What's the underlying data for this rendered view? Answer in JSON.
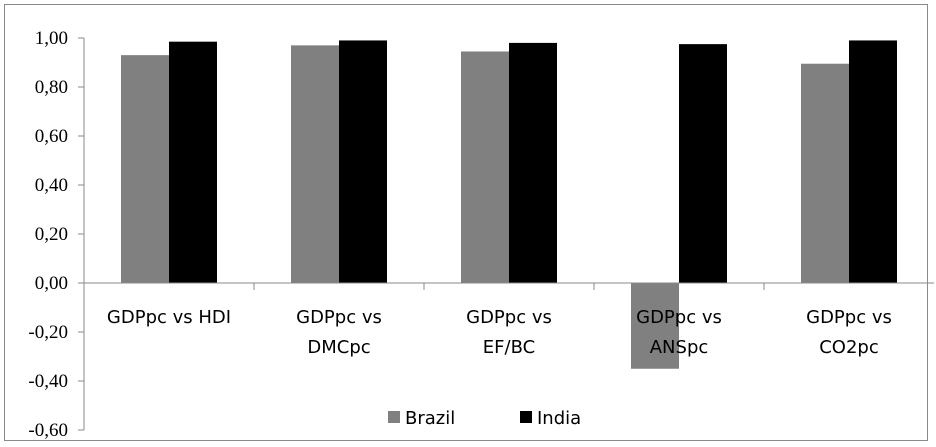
{
  "chart_data": {
    "type": "bar",
    "title": "",
    "xlabel": "",
    "ylabel": "",
    "categories": [
      [
        "GDPpc vs HDI"
      ],
      [
        "GDPpc vs",
        "DMCpc"
      ],
      [
        "GDPpc vs",
        "EF/BC"
      ],
      [
        "GDPpc vs",
        "ANSpc"
      ],
      [
        "GDPpc vs",
        "CO2pc"
      ]
    ],
    "series": [
      {
        "name": "Brazil",
        "color": "#808080",
        "values": [
          0.93,
          0.97,
          0.945,
          -0.35,
          0.895
        ]
      },
      {
        "name": "India",
        "color": "#000000",
        "values": [
          0.985,
          0.99,
          0.98,
          0.975,
          0.99
        ]
      }
    ],
    "ylim": [
      -0.6,
      1.0
    ],
    "yticks": [
      1.0,
      0.8,
      0.6,
      0.4,
      0.2,
      0.0,
      -0.2,
      -0.4,
      -0.6
    ],
    "ytick_labels": [
      "1,00",
      "0,80",
      "0,60",
      "0,40",
      "0,20",
      "0,00",
      "-0,20",
      "-0,40",
      "-0,60"
    ],
    "grid": false,
    "legend": {
      "position": "bottom"
    }
  }
}
